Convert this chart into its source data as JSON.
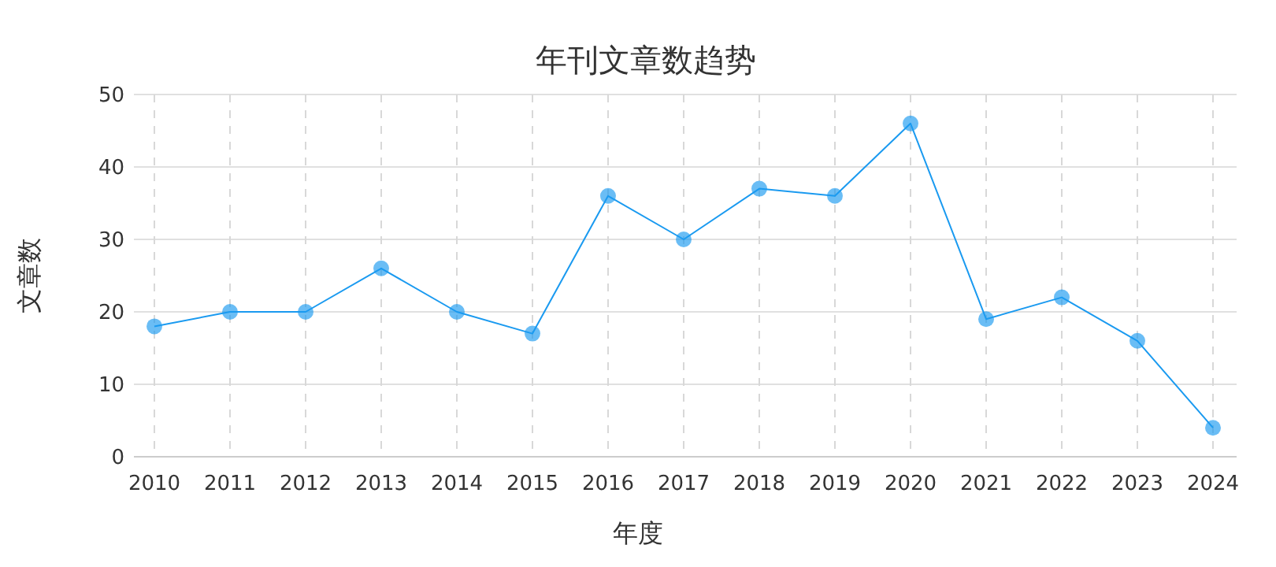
{
  "chart_data": {
    "type": "line",
    "title": "年刊文章数趋势",
    "xlabel": "年度",
    "ylabel": "文章数",
    "categories": [
      "2010",
      "2011",
      "2012",
      "2013",
      "2014",
      "2015",
      "2016",
      "2017",
      "2018",
      "2019",
      "2020",
      "2021",
      "2022",
      "2023",
      "2024"
    ],
    "series": [
      {
        "color": "#1a9af0",
        "values": [
          18,
          20,
          20,
          26,
          20,
          17,
          36,
          30,
          37,
          36,
          46,
          19,
          22,
          16,
          4
        ]
      }
    ],
    "ylim": [
      0,
      50
    ],
    "yticks": [
      0,
      10,
      20,
      30,
      40,
      50
    ],
    "grid": true,
    "marker": "circle",
    "line_style": "solid"
  }
}
